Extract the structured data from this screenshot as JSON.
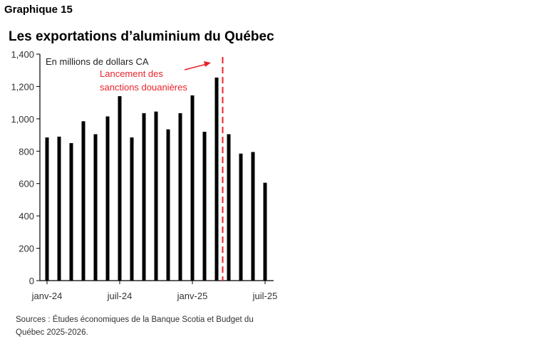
{
  "header": {
    "label": "Graphique 15",
    "title": "Les exportations d’aluminium du Québec"
  },
  "chart_data": {
    "type": "bar",
    "title": "Les exportations d’aluminium du Québec",
    "unit_label": "En millions de dollars CA",
    "categories": [
      "janv-24",
      "févr-24",
      "mars-24",
      "avr-24",
      "mai-24",
      "juin-24",
      "juil-24",
      "août-24",
      "sept-24",
      "oct-24",
      "nov-24",
      "déc-24",
      "janv-25",
      "févr-25",
      "mars-25",
      "avr-25",
      "mai-25",
      "juin-25",
      "juil-25"
    ],
    "values": [
      885,
      890,
      850,
      985,
      905,
      1015,
      1140,
      885,
      1035,
      1045,
      935,
      1035,
      1145,
      920,
      1255,
      905,
      785,
      795,
      605
    ],
    "ylim": [
      0,
      1400
    ],
    "yticks": [
      0,
      200,
      400,
      600,
      800,
      "1,000",
      "1,200",
      "1,400"
    ],
    "xtick_labels": [
      "janv-24",
      "juil-24",
      "janv-25",
      "juil-25"
    ],
    "annotation": {
      "lines": [
        "Lancement des",
        "sanctions douanières"
      ],
      "color": "#e8232a",
      "after_category": "mars-25"
    },
    "bar_color": "#000000",
    "grid": false
  },
  "footer": {
    "source": "Sources : Études économiques de la Banque Scotia et Budget du Québec 2025-2026."
  }
}
